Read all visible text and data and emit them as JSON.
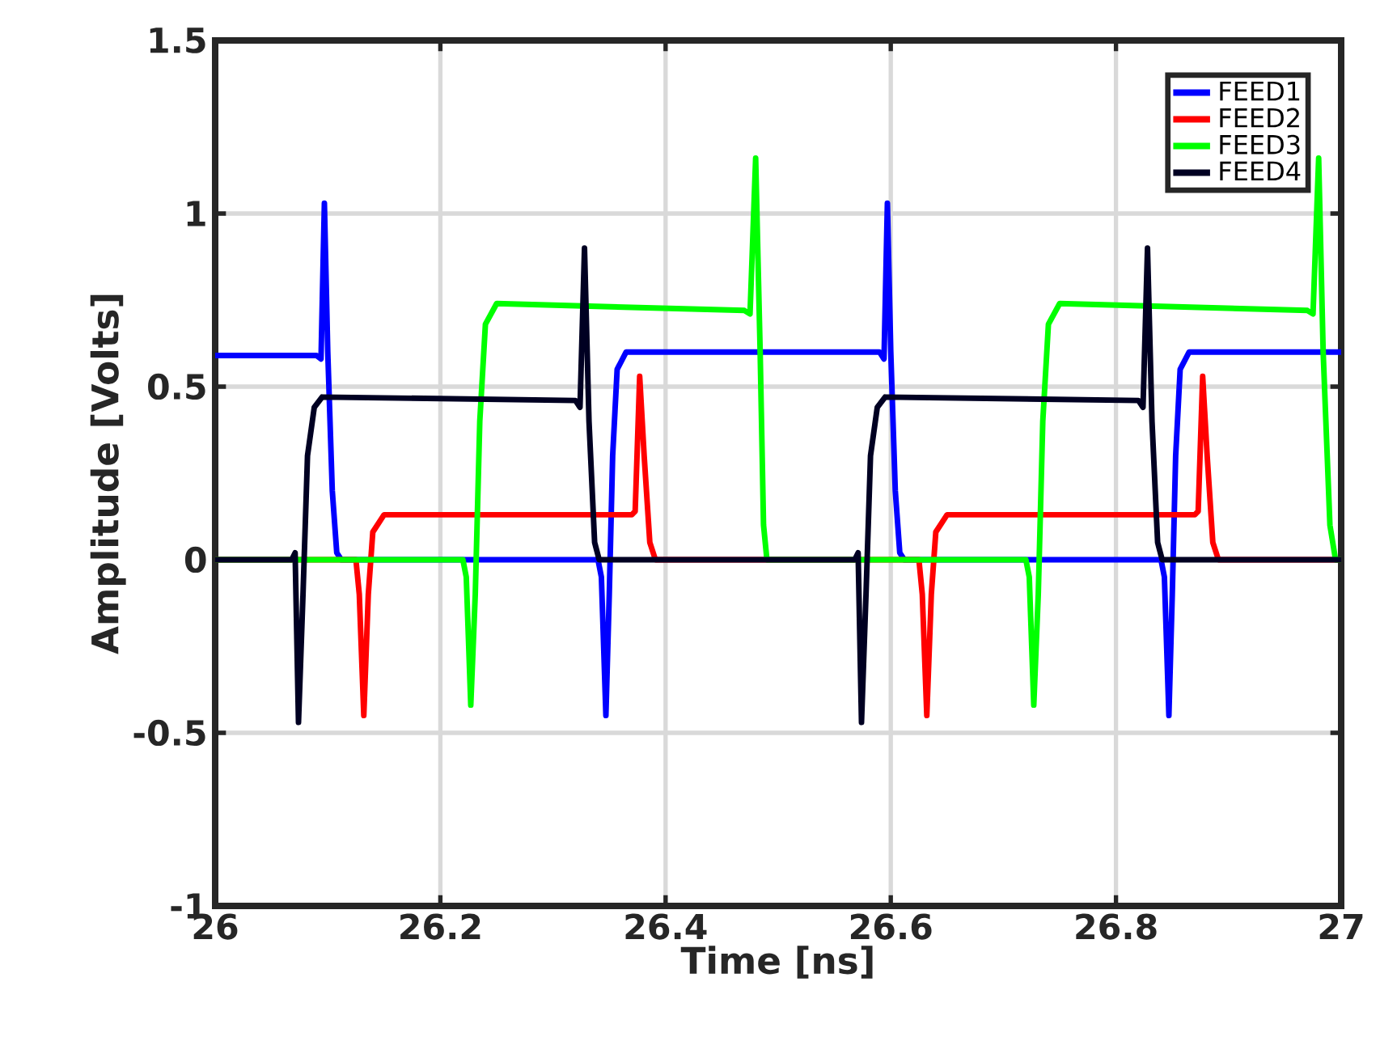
{
  "chart_data": {
    "type": "line",
    "xlabel": "Time [ns]",
    "ylabel": "Amplitude [Volts]",
    "xlim": [
      26,
      27
    ],
    "ylim": [
      -1,
      1.5
    ],
    "xticks": [
      26,
      26.2,
      26.4,
      26.6,
      26.8,
      27
    ],
    "yticks": [
      -1,
      -0.5,
      0,
      0.5,
      1,
      1.5
    ],
    "grid": true,
    "legend": "top right",
    "marker": "none",
    "line_style": "solid",
    "series": [
      {
        "name": "FEED1",
        "color": "#0000ff",
        "x": [
          26,
          26.09,
          26.094,
          26.097,
          26.1,
          26.104,
          26.108,
          26.112,
          26.34,
          26.343,
          26.347,
          26.35,
          26.353,
          26.357,
          26.365,
          26.59,
          26.594,
          26.597,
          26.6,
          26.604,
          26.608,
          26.612,
          26.84,
          26.843,
          26.847,
          26.85,
          26.853,
          26.857,
          26.865,
          27
        ],
        "values": [
          0.59,
          0.59,
          0.58,
          1.03,
          0.6,
          0.2,
          0.02,
          0,
          0,
          -0.05,
          -0.45,
          -0.1,
          0.3,
          0.55,
          0.6,
          0.6,
          0.58,
          1.03,
          0.6,
          0.2,
          0.02,
          0,
          0,
          -0.05,
          -0.45,
          -0.1,
          0.3,
          0.55,
          0.6,
          0.6
        ]
      },
      {
        "name": "FEED2",
        "color": "#ff0000",
        "x": [
          26,
          26.125,
          26.128,
          26.132,
          26.136,
          26.14,
          26.15,
          26.37,
          26.373,
          26.377,
          26.381,
          26.386,
          26.391,
          26.625,
          26.628,
          26.632,
          26.636,
          26.64,
          26.65,
          26.87,
          26.873,
          26.877,
          26.881,
          26.886,
          26.891,
          27
        ],
        "values": [
          0,
          0,
          -0.1,
          -0.45,
          -0.1,
          0.08,
          0.13,
          0.13,
          0.14,
          0.53,
          0.3,
          0.05,
          0,
          0,
          -0.1,
          -0.45,
          -0.1,
          0.08,
          0.13,
          0.13,
          0.14,
          0.53,
          0.3,
          0.05,
          0,
          0
        ]
      },
      {
        "name": "FEED3",
        "color": "#00ff00",
        "x": [
          26,
          26.22,
          26.223,
          26.227,
          26.231,
          26.235,
          26.24,
          26.25,
          26.47,
          26.475,
          26.48,
          26.484,
          26.487,
          26.49,
          26.72,
          26.723,
          26.727,
          26.731,
          26.735,
          26.74,
          26.75,
          26.97,
          26.975,
          26.98,
          26.984,
          26.99,
          26.995,
          27
        ],
        "values": [
          0,
          0,
          -0.05,
          -0.42,
          -0.1,
          0.4,
          0.68,
          0.74,
          0.72,
          0.71,
          1.16,
          0.6,
          0.1,
          0,
          0,
          -0.05,
          -0.42,
          -0.1,
          0.4,
          0.68,
          0.74,
          0.72,
          0.71,
          1.16,
          0.6,
          0.1,
          0,
          0
        ]
      },
      {
        "name": "FEED4",
        "color": "#000022",
        "x": [
          26,
          26.068,
          26.071,
          26.074,
          26.078,
          26.082,
          26.088,
          26.095,
          26.32,
          26.324,
          26.328,
          26.332,
          26.337,
          26.341,
          26.568,
          26.571,
          26.574,
          26.578,
          26.582,
          26.588,
          26.595,
          26.82,
          26.824,
          26.828,
          26.832,
          26.837,
          26.841,
          27
        ],
        "values": [
          0,
          0,
          0.02,
          -0.47,
          -0.1,
          0.3,
          0.44,
          0.47,
          0.46,
          0.44,
          0.9,
          0.4,
          0.05,
          0,
          0,
          0.02,
          -0.47,
          -0.1,
          0.3,
          0.44,
          0.47,
          0.46,
          0.44,
          0.9,
          0.4,
          0.05,
          0,
          0
        ]
      }
    ]
  }
}
